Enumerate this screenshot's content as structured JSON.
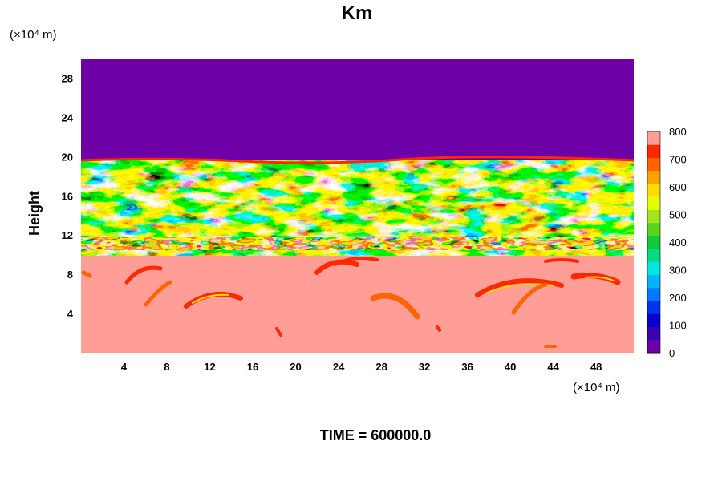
{
  "chart_data": {
    "type": "heatmap",
    "title": "Km",
    "ylabel": "Height",
    "xlabel": "",
    "x_unit": "(×10⁴ m)",
    "y_unit": "(×10⁴ m)",
    "xlim": [
      0,
      51.5
    ],
    "ylim": [
      0,
      30
    ],
    "x_ticks": [
      4,
      8,
      12,
      16,
      20,
      24,
      28,
      32,
      36,
      40,
      44,
      48
    ],
    "y_ticks": [
      4,
      8,
      12,
      16,
      20,
      24,
      28
    ],
    "colorbar": {
      "min": 0,
      "max": 800,
      "step": 50,
      "labels": [
        0,
        100,
        200,
        300,
        400,
        500,
        600,
        700,
        800
      ],
      "colors": [
        "#6e00a8",
        "#3a00b4",
        "#0a00d2",
        "#0032f0",
        "#0078ff",
        "#00b4ff",
        "#00e6e6",
        "#00dc82",
        "#14c83c",
        "#5ad21e",
        "#a0e61e",
        "#e6ff00",
        "#ffdc00",
        "#ffa000",
        "#ff6400",
        "#ff2800",
        "#ff9e96"
      ]
    },
    "regions": [
      {
        "y_range": [
          0,
          10
        ],
        "description": "mostly saturated (≥800) with scattered 500–750 streaks"
      },
      {
        "y_range": [
          10,
          19.8
        ],
        "description": "highly variable 0–800 turbulent layer"
      },
      {
        "y_range": [
          19.8,
          30
        ],
        "description": "uniform 0"
      }
    ],
    "grid": false
  },
  "footer": "TIME = 600000.0"
}
